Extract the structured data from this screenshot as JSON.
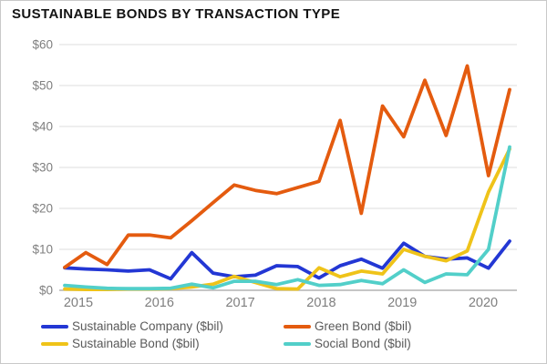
{
  "title": "SUSTAINABLE BONDS BY TRANSACTION TYPE",
  "colors": {
    "title_text": "#141414",
    "axis_label_text": "#7f7f7f",
    "legend_text": "#595959",
    "gridline": "#dcdcdc",
    "zero_axis_line": "#b3b3b3",
    "background": "#ffffff"
  },
  "chart_data": {
    "type": "line",
    "title": "SUSTAINABLE BONDS BY TRANSACTION TYPE",
    "grid": "horizontal",
    "legend_position": "bottom",
    "x_axis": {
      "labels": [
        "2015",
        "2016",
        "2017",
        "2018",
        "2019",
        "2020"
      ]
    },
    "y_axis": {
      "min": 0,
      "max": 60,
      "step": 10,
      "prefix": "$",
      "tick_labels": [
        "$0",
        "$10",
        "$20",
        "$30",
        "$40",
        "$50",
        "$60"
      ]
    },
    "categories": [
      "2015 Q1",
      "2015 Q2",
      "2015 Q3",
      "2015 Q4",
      "2016 Q1",
      "2016 Q2",
      "2016 Q3",
      "2016 Q4",
      "2017 Q1",
      "2017 Q2",
      "2017 Q3",
      "2017 Q4",
      "2018 Q1",
      "2018 Q2",
      "2018 Q3",
      "2018 Q4",
      "2019 Q1",
      "2019 Q2",
      "2019 Q3",
      "2019 Q4",
      "2020 Q1",
      "2020 Q2"
    ],
    "series": [
      {
        "name": "Sustainable Company ($bil)",
        "color": "#2337d4",
        "values": [
          5.5,
          5.2,
          5.0,
          4.7,
          5.0,
          2.8,
          9.2,
          4.2,
          3.3,
          3.7,
          6.0,
          5.8,
          3.0,
          6.0,
          7.6,
          5.4,
          11.5,
          8.3,
          7.6,
          7.9,
          5.4,
          12.0
        ]
      },
      {
        "name": "Green Bond ($bil)",
        "color": "#e45b0f",
        "values": [
          5.6,
          9.2,
          6.3,
          13.5,
          13.5,
          12.8,
          17.0,
          21.4,
          25.7,
          24.4,
          23.6,
          25.1,
          26.6,
          41.5,
          18.8,
          45.0,
          37.5,
          51.3,
          37.8,
          54.8,
          28.0,
          49.0
        ]
      },
      {
        "name": "Sustainable Bond ($bil)",
        "color": "#efc319",
        "values": [
          0.3,
          0.2,
          0.2,
          0.3,
          0.3,
          0.4,
          0.8,
          1.5,
          3.4,
          1.9,
          0.4,
          0.3,
          5.5,
          3.3,
          4.7,
          4.0,
          10.0,
          8.3,
          7.2,
          9.6,
          24.0,
          34.5
        ]
      },
      {
        "name": "Social Bond ($bil)",
        "color": "#52cfc9",
        "values": [
          1.2,
          0.8,
          0.5,
          0.4,
          0.4,
          0.5,
          1.5,
          0.6,
          2.2,
          2.2,
          1.4,
          2.6,
          1.2,
          1.4,
          2.4,
          1.6,
          5.0,
          1.9,
          4.0,
          3.8,
          10.0,
          35.0
        ]
      }
    ]
  }
}
